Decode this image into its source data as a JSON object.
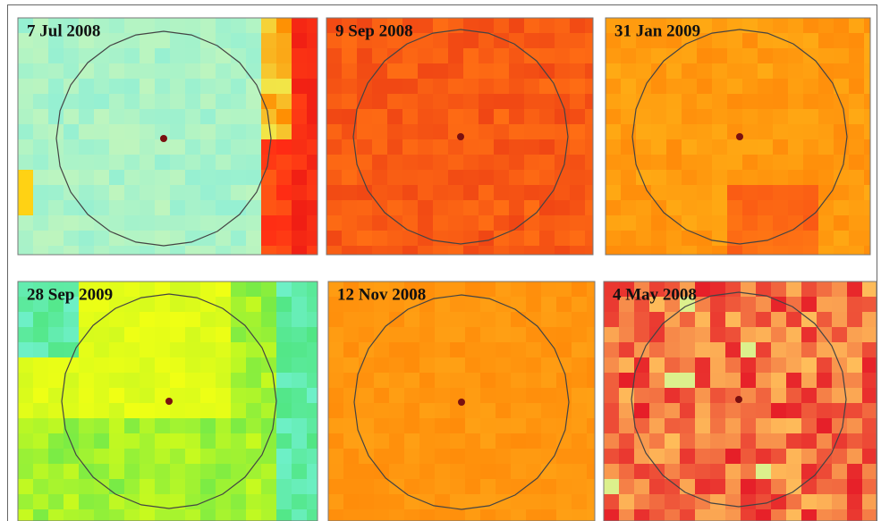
{
  "panels": [
    {
      "label": "7 Jul 2008"
    },
    {
      "label": "9 Sep 2008"
    },
    {
      "label": "31 Jan 2009"
    },
    {
      "label": "28 Sep 2009"
    },
    {
      "label": "12 Nov 2008"
    },
    {
      "label": "4 May 2008"
    }
  ]
}
